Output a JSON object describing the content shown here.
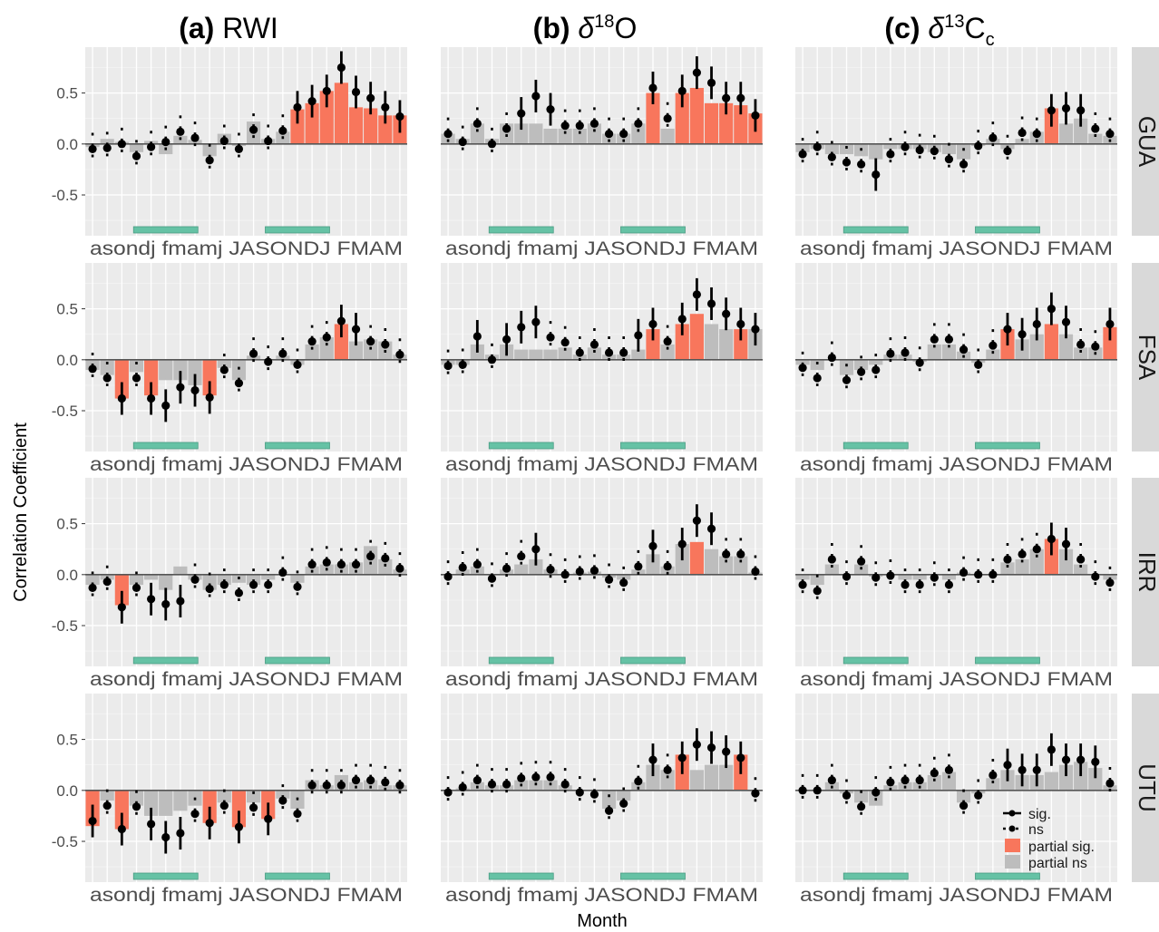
{
  "chart_data": {
    "type": "bar",
    "xlabel": "Month",
    "ylabel": "Correlation Coefficient",
    "ylim": [
      -0.9,
      0.95
    ],
    "yticks": [
      "0.5",
      "0.0",
      "-0.5"
    ],
    "ytick_values": [
      0.5,
      0.0,
      -0.5
    ],
    "months": [
      "a",
      "s",
      "o",
      "n",
      "d",
      "j",
      "f",
      "m",
      "a",
      "m",
      "j",
      "J",
      "A",
      "S",
      "O",
      "N",
      "D",
      "J",
      "F",
      "M",
      "A",
      "M"
    ],
    "month_labels": "asondj fmamj JASONDJ FMAM",
    "seasons": [
      [
        3,
        7
      ],
      [
        12,
        16
      ]
    ],
    "columns": [
      {
        "prefix": "(a)",
        "name": "RWI"
      },
      {
        "prefix": "(b)",
        "name": "δ¹⁸O"
      },
      {
        "prefix": "(c)",
        "name": "δ¹³Cc"
      }
    ],
    "sites": [
      "GUA",
      "FSA",
      "IRR",
      "UTU"
    ],
    "legend": {
      "sig": "sig.",
      "ns": "ns",
      "partial_sig": "partial sig.",
      "partial_ns": "partial ns"
    },
    "colors": {
      "partial_sig": "#f8765c",
      "partial_ns": "#bdbdbd",
      "season_bar": "#66c2a5",
      "panel_bg": "#ebebeb",
      "strip_bg": "#d9d9d9"
    },
    "panels": [
      {
        "column": "RWI",
        "site": "GUA",
        "r": [
          -0.05,
          -0.04,
          0.0,
          -0.12,
          -0.03,
          0.02,
          0.12,
          0.06,
          -0.16,
          0.03,
          -0.05,
          0.14,
          0.03,
          0.13,
          0.36,
          0.42,
          0.52,
          0.75,
          0.51,
          0.45,
          0.36,
          0.27
        ],
        "partial": [
          -0.03,
          0.05,
          0.02,
          -0.08,
          0.03,
          -0.1,
          0.08,
          0.04,
          -0.12,
          0.1,
          -0.02,
          0.22,
          0.05,
          0.12,
          0.34,
          0.4,
          0.52,
          0.6,
          0.36,
          0.35,
          0.28,
          0.28
        ],
        "sig": [
          0,
          0,
          0,
          0,
          0,
          0,
          0,
          0,
          0,
          0,
          0,
          0,
          0,
          0,
          1,
          1,
          1,
          1,
          1,
          1,
          1,
          1
        ],
        "psig": [
          0,
          0,
          0,
          0,
          0,
          0,
          0,
          0,
          0,
          0,
          0,
          0,
          0,
          0,
          1,
          1,
          1,
          1,
          1,
          1,
          1,
          1
        ]
      },
      {
        "column": "RWI",
        "site": "FSA",
        "r": [
          -0.09,
          -0.18,
          -0.38,
          -0.18,
          -0.38,
          -0.45,
          -0.27,
          -0.3,
          -0.37,
          -0.1,
          -0.23,
          0.06,
          -0.02,
          0.06,
          -0.05,
          0.18,
          0.22,
          0.38,
          0.3,
          0.18,
          0.15,
          0.05
        ],
        "partial": [
          -0.1,
          -0.15,
          -0.38,
          -0.12,
          -0.35,
          -0.2,
          -0.2,
          -0.25,
          -0.35,
          -0.08,
          -0.2,
          0.04,
          0.0,
          0.04,
          -0.05,
          0.15,
          0.22,
          0.35,
          0.18,
          0.2,
          0.18,
          0.05
        ],
        "sig": [
          0,
          0,
          1,
          0,
          1,
          1,
          1,
          1,
          1,
          0,
          0,
          0,
          0,
          0,
          0,
          0,
          0,
          1,
          1,
          0,
          0,
          0
        ],
        "psig": [
          0,
          0,
          1,
          0,
          1,
          0,
          0,
          0,
          1,
          0,
          0,
          0,
          0,
          0,
          0,
          0,
          0,
          1,
          0,
          0,
          0,
          0
        ]
      },
      {
        "column": "RWI",
        "site": "IRR",
        "r": [
          -0.13,
          -0.07,
          -0.32,
          -0.13,
          -0.24,
          -0.29,
          -0.26,
          -0.05,
          -0.14,
          -0.1,
          -0.18,
          -0.1,
          -0.1,
          0.02,
          -0.12,
          0.1,
          0.12,
          0.1,
          0.1,
          0.18,
          0.16,
          0.06
        ],
        "partial": [
          -0.1,
          -0.05,
          -0.3,
          -0.1,
          -0.05,
          -0.15,
          0.08,
          -0.05,
          -0.15,
          -0.1,
          -0.08,
          -0.1,
          -0.05,
          0.0,
          -0.08,
          0.08,
          0.1,
          0.1,
          0.12,
          0.28,
          0.15,
          0.05
        ],
        "sig": [
          0,
          0,
          1,
          0,
          1,
          1,
          1,
          0,
          0,
          0,
          0,
          0,
          0,
          0,
          0,
          0,
          0,
          0,
          0,
          0,
          0,
          0
        ],
        "psig": [
          0,
          0,
          1,
          0,
          0,
          0,
          0,
          0,
          0,
          0,
          0,
          0,
          0,
          0,
          0,
          0,
          0,
          0,
          0,
          0,
          0,
          0
        ]
      },
      {
        "column": "RWI",
        "site": "UTU",
        "r": [
          -0.3,
          -0.15,
          -0.38,
          -0.16,
          -0.33,
          -0.46,
          -0.42,
          -0.23,
          -0.32,
          -0.15,
          -0.36,
          -0.17,
          -0.28,
          -0.1,
          -0.23,
          0.05,
          0.05,
          0.05,
          0.1,
          0.1,
          0.08,
          0.05
        ],
        "partial": [
          -0.35,
          -0.1,
          -0.38,
          -0.15,
          -0.25,
          -0.25,
          -0.2,
          -0.15,
          -0.32,
          -0.12,
          -0.36,
          -0.12,
          -0.28,
          -0.08,
          -0.18,
          0.1,
          0.05,
          0.15,
          0.08,
          0.1,
          0.05,
          0.05
        ],
        "sig": [
          1,
          0,
          1,
          0,
          1,
          1,
          1,
          0,
          1,
          0,
          1,
          0,
          1,
          0,
          0,
          0,
          0,
          0,
          0,
          0,
          0,
          0
        ],
        "psig": [
          1,
          0,
          1,
          0,
          0,
          0,
          0,
          0,
          1,
          0,
          1,
          0,
          1,
          0,
          0,
          0,
          0,
          0,
          0,
          0,
          0,
          0
        ]
      },
      {
        "column": "δ¹⁸O",
        "site": "GUA",
        "r": [
          0.1,
          0.02,
          0.2,
          0.0,
          0.15,
          0.3,
          0.47,
          0.34,
          0.18,
          0.18,
          0.2,
          0.1,
          0.1,
          0.2,
          0.55,
          0.25,
          0.52,
          0.7,
          0.6,
          0.45,
          0.45,
          0.28
        ],
        "partial": [
          0.1,
          0.05,
          0.2,
          0.05,
          0.2,
          0.2,
          0.2,
          0.15,
          0.15,
          0.15,
          0.2,
          0.1,
          0.1,
          0.2,
          0.5,
          0.15,
          0.5,
          0.55,
          0.4,
          0.4,
          0.38,
          0.3
        ],
        "sig": [
          0,
          0,
          0,
          0,
          0,
          1,
          1,
          1,
          0,
          0,
          0,
          0,
          0,
          0,
          1,
          0,
          1,
          1,
          1,
          1,
          1,
          1
        ],
        "psig": [
          0,
          0,
          0,
          0,
          0,
          0,
          0,
          0,
          0,
          0,
          0,
          0,
          0,
          0,
          1,
          0,
          1,
          1,
          1,
          1,
          1,
          1
        ]
      },
      {
        "column": "δ¹⁸O",
        "site": "FSA",
        "r": [
          -0.06,
          -0.05,
          0.23,
          0.0,
          0.2,
          0.32,
          0.37,
          0.22,
          0.17,
          0.07,
          0.15,
          0.07,
          0.07,
          0.24,
          0.35,
          0.18,
          0.4,
          0.64,
          0.55,
          0.45,
          0.35,
          0.3
        ],
        "partial": [
          -0.05,
          -0.05,
          0.15,
          0.05,
          0.15,
          0.1,
          0.1,
          0.1,
          0.12,
          0.05,
          0.12,
          0.05,
          0.05,
          0.1,
          0.3,
          0.15,
          0.35,
          0.45,
          0.35,
          0.3,
          0.3,
          0.3
        ],
        "sig": [
          0,
          0,
          1,
          0,
          1,
          1,
          1,
          0,
          0,
          0,
          0,
          0,
          0,
          1,
          1,
          0,
          1,
          1,
          1,
          1,
          1,
          1
        ],
        "psig": [
          0,
          0,
          0,
          0,
          0,
          0,
          0,
          0,
          0,
          0,
          0,
          0,
          0,
          0,
          1,
          0,
          1,
          1,
          0,
          0,
          1,
          0
        ]
      },
      {
        "column": "δ¹⁸O",
        "site": "IRR",
        "r": [
          -0.02,
          0.07,
          0.1,
          -0.04,
          0.06,
          0.18,
          0.25,
          0.05,
          0.0,
          0.03,
          0.04,
          -0.05,
          -0.08,
          0.08,
          0.28,
          0.08,
          0.3,
          0.53,
          0.45,
          0.2,
          0.2,
          0.03
        ],
        "partial": [
          0.0,
          0.05,
          0.08,
          0.0,
          0.05,
          0.1,
          0.15,
          0.05,
          0.0,
          0.02,
          0.03,
          -0.03,
          -0.05,
          0.05,
          0.2,
          0.08,
          0.3,
          0.32,
          0.25,
          0.18,
          0.18,
          0.02
        ],
        "sig": [
          0,
          0,
          0,
          0,
          0,
          0,
          1,
          0,
          0,
          0,
          0,
          0,
          0,
          0,
          1,
          0,
          1,
          1,
          1,
          0,
          0,
          0
        ],
        "psig": [
          0,
          0,
          0,
          0,
          0,
          0,
          0,
          0,
          0,
          0,
          0,
          0,
          0,
          0,
          0,
          0,
          0,
          1,
          0,
          0,
          0,
          0
        ]
      },
      {
        "column": "δ¹⁸O",
        "site": "UTU",
        "r": [
          -0.02,
          0.03,
          0.1,
          0.06,
          0.06,
          0.12,
          0.13,
          0.13,
          0.06,
          -0.02,
          -0.04,
          -0.2,
          -0.13,
          0.09,
          0.3,
          0.2,
          0.32,
          0.45,
          0.42,
          0.38,
          0.32,
          -0.03
        ],
        "partial": [
          0.0,
          0.02,
          0.08,
          0.05,
          0.05,
          0.1,
          0.1,
          0.1,
          0.05,
          0.0,
          0.0,
          -0.18,
          -0.1,
          0.08,
          0.25,
          0.2,
          0.35,
          0.2,
          0.25,
          0.25,
          0.35,
          0.0
        ],
        "sig": [
          0,
          0,
          0,
          0,
          0,
          0,
          0,
          0,
          0,
          0,
          0,
          0,
          0,
          0,
          1,
          0,
          1,
          1,
          1,
          1,
          1,
          0
        ],
        "psig": [
          0,
          0,
          0,
          0,
          0,
          0,
          0,
          0,
          0,
          0,
          0,
          0,
          0,
          0,
          0,
          0,
          1,
          0,
          0,
          0,
          1,
          0
        ]
      },
      {
        "column": "δ¹³Cc",
        "site": "GUA",
        "r": [
          -0.1,
          -0.03,
          -0.13,
          -0.18,
          -0.2,
          -0.3,
          -0.1,
          -0.03,
          -0.06,
          -0.07,
          -0.15,
          -0.2,
          -0.02,
          0.06,
          -0.07,
          0.11,
          0.1,
          0.33,
          0.35,
          0.33,
          0.15,
          0.1
        ],
        "partial": [
          -0.08,
          -0.05,
          -0.1,
          -0.1,
          -0.12,
          -0.15,
          -0.05,
          -0.05,
          -0.05,
          -0.08,
          -0.1,
          -0.15,
          -0.02,
          0.05,
          -0.05,
          0.05,
          0.12,
          0.35,
          0.2,
          0.25,
          0.1,
          0.08
        ],
        "sig": [
          0,
          0,
          0,
          0,
          0,
          1,
          0,
          0,
          0,
          0,
          0,
          0,
          0,
          0,
          0,
          0,
          0,
          1,
          1,
          1,
          0,
          0
        ],
        "psig": [
          0,
          0,
          0,
          0,
          0,
          0,
          0,
          0,
          0,
          0,
          0,
          0,
          0,
          0,
          0,
          0,
          0,
          1,
          0,
          0,
          0,
          0
        ]
      },
      {
        "column": "δ¹³Cc",
        "site": "FSA",
        "r": [
          -0.08,
          -0.18,
          0.02,
          -0.2,
          -0.12,
          -0.1,
          0.06,
          0.07,
          -0.03,
          0.2,
          0.2,
          0.1,
          -0.05,
          0.14,
          0.3,
          0.25,
          0.35,
          0.5,
          0.37,
          0.15,
          0.13,
          0.35
        ],
        "partial": [
          -0.05,
          -0.1,
          0.0,
          -0.15,
          -0.1,
          -0.05,
          0.05,
          0.05,
          -0.02,
          0.15,
          0.15,
          0.08,
          -0.03,
          0.1,
          0.3,
          0.2,
          0.25,
          0.35,
          0.25,
          0.12,
          0.12,
          0.32
        ],
        "sig": [
          0,
          0,
          0,
          0,
          0,
          0,
          0,
          0,
          0,
          0,
          0,
          0,
          0,
          0,
          1,
          1,
          1,
          1,
          1,
          0,
          0,
          1
        ],
        "psig": [
          0,
          0,
          0,
          0,
          0,
          0,
          0,
          0,
          0,
          0,
          0,
          0,
          0,
          0,
          1,
          0,
          0,
          1,
          0,
          0,
          0,
          1
        ]
      },
      {
        "column": "δ¹³Cc",
        "site": "IRR",
        "r": [
          -0.1,
          -0.16,
          0.15,
          -0.02,
          0.13,
          -0.03,
          -0.01,
          -0.1,
          -0.1,
          -0.03,
          -0.1,
          0.02,
          0.0,
          0.0,
          0.15,
          0.2,
          0.25,
          0.35,
          0.3,
          0.15,
          -0.02,
          -0.08
        ],
        "partial": [
          -0.05,
          -0.1,
          0.1,
          0.0,
          0.1,
          -0.02,
          0.0,
          -0.05,
          -0.05,
          0.0,
          -0.05,
          0.02,
          0.0,
          0.0,
          0.12,
          0.15,
          0.25,
          0.35,
          0.25,
          0.1,
          0.0,
          -0.05
        ],
        "sig": [
          0,
          0,
          0,
          0,
          0,
          0,
          0,
          0,
          0,
          0,
          0,
          0,
          0,
          0,
          0,
          0,
          0,
          1,
          1,
          0,
          0,
          0
        ],
        "psig": [
          0,
          0,
          0,
          0,
          0,
          0,
          0,
          0,
          0,
          0,
          0,
          0,
          0,
          0,
          0,
          0,
          0,
          1,
          0,
          0,
          0,
          0
        ]
      },
      {
        "column": "δ¹³Cc",
        "site": "UTU",
        "r": [
          0.0,
          0.0,
          0.1,
          -0.05,
          -0.16,
          -0.02,
          0.08,
          0.1,
          0.1,
          0.17,
          0.2,
          -0.15,
          -0.05,
          0.15,
          0.25,
          0.2,
          0.2,
          0.4,
          0.3,
          0.3,
          0.28,
          0.07
        ],
        "partial": [
          0.0,
          0.0,
          0.08,
          -0.03,
          -0.12,
          -0.15,
          0.05,
          0.08,
          0.08,
          0.15,
          0.18,
          -0.12,
          -0.03,
          0.12,
          0.2,
          0.15,
          0.15,
          0.18,
          0.25,
          0.28,
          0.22,
          0.05
        ],
        "sig": [
          0,
          0,
          0,
          0,
          0,
          0,
          0,
          0,
          0,
          0,
          0,
          0,
          0,
          0,
          1,
          1,
          1,
          1,
          1,
          1,
          1,
          0
        ],
        "psig": [
          0,
          0,
          0,
          0,
          0,
          0,
          0,
          0,
          0,
          0,
          0,
          0,
          0,
          0,
          0,
          0,
          0,
          0,
          0,
          0,
          0,
          0
        ]
      }
    ]
  }
}
